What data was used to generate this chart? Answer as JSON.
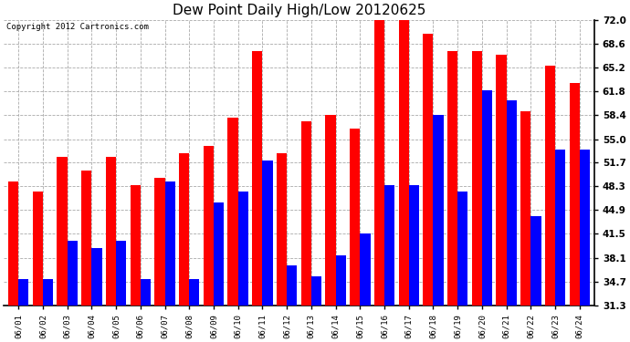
{
  "title": "Dew Point Daily High/Low 20120625",
  "copyright": "Copyright 2012 Cartronics.com",
  "dates": [
    "06/01",
    "06/02",
    "06/03",
    "06/04",
    "06/05",
    "06/06",
    "06/07",
    "06/08",
    "06/09",
    "06/10",
    "06/11",
    "06/12",
    "06/13",
    "06/14",
    "06/15",
    "06/16",
    "06/17",
    "06/18",
    "06/19",
    "06/20",
    "06/21",
    "06/22",
    "06/23",
    "06/24"
  ],
  "highs": [
    49.0,
    47.5,
    52.5,
    50.5,
    52.5,
    48.5,
    49.5,
    53.0,
    54.0,
    58.0,
    67.5,
    53.0,
    57.5,
    58.5,
    56.5,
    73.0,
    73.5,
    70.0,
    67.5,
    67.5,
    67.0,
    59.0,
    65.5,
    63.0
  ],
  "lows": [
    35.0,
    35.0,
    40.5,
    39.5,
    40.5,
    35.0,
    49.0,
    35.0,
    46.0,
    47.5,
    52.0,
    37.0,
    35.5,
    38.5,
    41.5,
    48.5,
    48.5,
    58.5,
    47.5,
    62.0,
    60.5,
    44.0,
    53.5,
    53.5
  ],
  "ymin": 31.3,
  "ymax": 72.0,
  "yticks": [
    31.3,
    34.7,
    38.1,
    41.5,
    44.9,
    48.3,
    51.7,
    55.0,
    58.4,
    61.8,
    65.2,
    68.6,
    72.0
  ],
  "bar_width": 0.42,
  "high_color": "#ff0000",
  "low_color": "#0000ff",
  "bg_color": "#ffffff",
  "grid_color": "#aaaaaa",
  "title_fontsize": 11,
  "copyright_fontsize": 6.5
}
